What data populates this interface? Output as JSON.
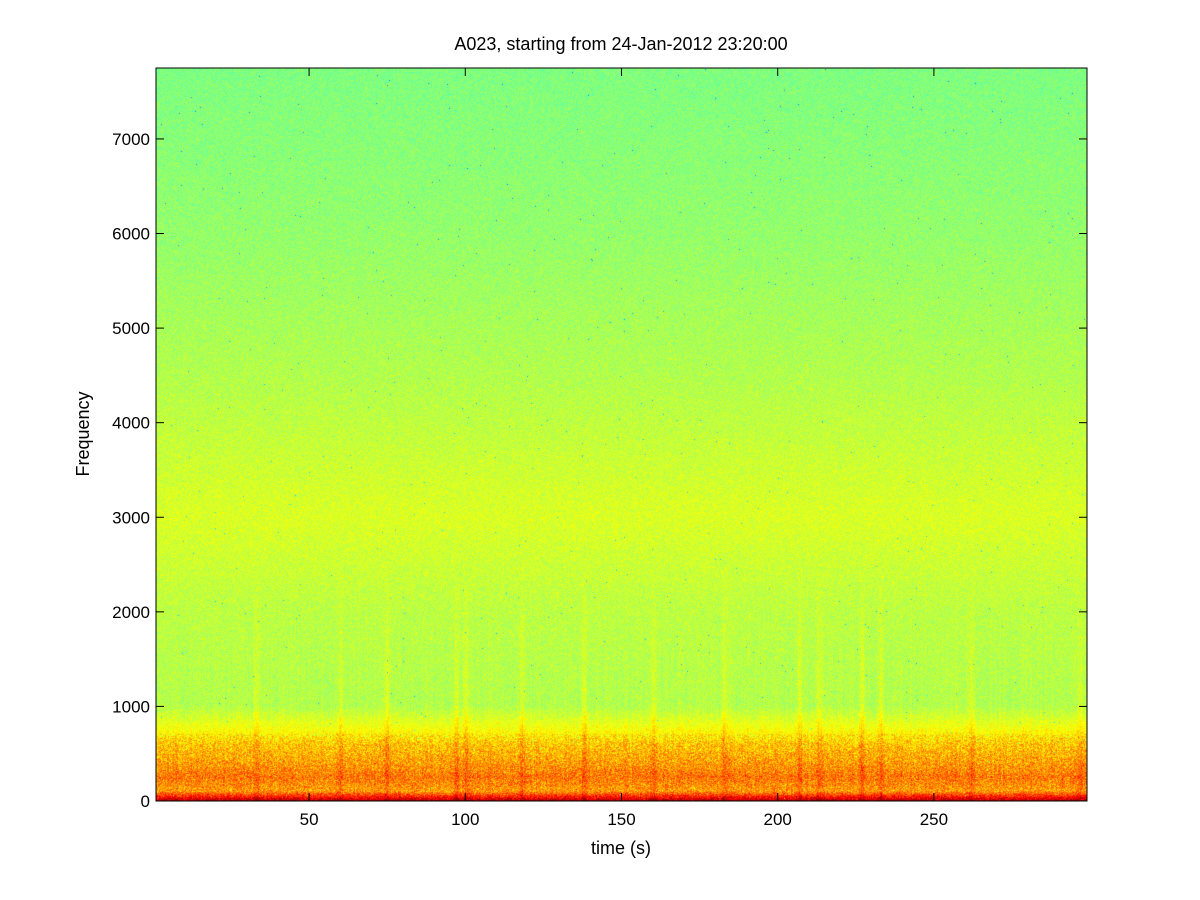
{
  "chart_data": {
    "type": "heatmap",
    "title": "A023, starting from 24-Jan-2012 23:20:00",
    "xlabel": "time (s)",
    "ylabel": "Frequency",
    "xlim": [
      1,
      299
    ],
    "ylim": [
      0,
      7750
    ],
    "x_ticks": [
      50,
      100,
      150,
      200,
      250
    ],
    "y_ticks": [
      0,
      1000,
      2000,
      3000,
      4000,
      5000,
      6000,
      7000
    ],
    "grid": false,
    "legend": "none",
    "colormap": "jet",
    "colors": {
      "background_high_freq": "#80ff80",
      "mid_band": "#d4ff2a",
      "low_band": "#ffc000",
      "strongest": "#a00000"
    },
    "intensity_profile": [
      {
        "frequency": 7700,
        "level": 0.5
      },
      {
        "frequency": 6000,
        "level": 0.52
      },
      {
        "frequency": 4500,
        "level": 0.55
      },
      {
        "frequency": 3000,
        "level": 0.59
      },
      {
        "frequency": 2000,
        "level": 0.56
      },
      {
        "frequency": 1000,
        "level": 0.55
      },
      {
        "frequency": 750,
        "level": 0.62
      },
      {
        "frequency": 600,
        "level": 0.68
      },
      {
        "frequency": 400,
        "level": 0.72
      },
      {
        "frequency": 250,
        "level": 0.76
      },
      {
        "frequency": 100,
        "level": 0.72
      },
      {
        "frequency": 40,
        "level": 0.85
      },
      {
        "frequency": 0,
        "level": 0.95
      }
    ],
    "transient_times": [
      33,
      60,
      75,
      97,
      100,
      118,
      138,
      160,
      183,
      207,
      213,
      227,
      233,
      262,
      297
    ]
  }
}
